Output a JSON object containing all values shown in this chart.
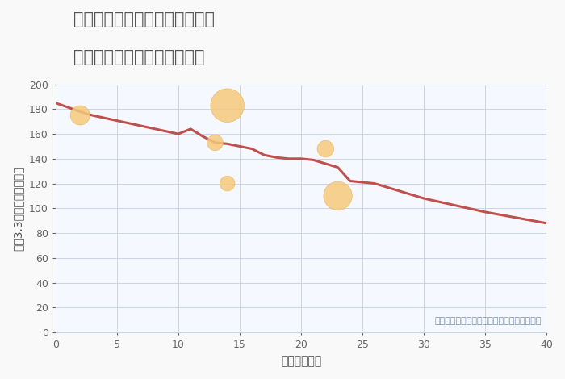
{
  "title_line1": "愛知県名古屋市中村区若宮町の",
  "title_line2": "築年数別中古マンション価格",
  "xlabel": "築年数（年）",
  "ylabel": "坪（3.3㎡）単価（万円）",
  "annotation": "円の大きさは、取引のあった物件面積を示す",
  "xlim": [
    0,
    40
  ],
  "ylim": [
    0,
    200
  ],
  "xticks": [
    0,
    5,
    10,
    15,
    20,
    25,
    30,
    35,
    40
  ],
  "yticks": [
    0,
    20,
    40,
    60,
    80,
    100,
    120,
    140,
    160,
    180,
    200
  ],
  "line_x": [
    0,
    2,
    3,
    10,
    11,
    12,
    13,
    14,
    15,
    16,
    17,
    18,
    19,
    20,
    21,
    22,
    23,
    24,
    25,
    26,
    30,
    35,
    40
  ],
  "line_y": [
    185,
    178,
    175,
    160,
    164,
    158,
    153,
    152,
    150,
    148,
    143,
    141,
    140,
    140,
    139,
    136,
    133,
    122,
    121,
    120,
    108,
    97,
    88
  ],
  "line_color": "#c0504d",
  "line_width": 2.2,
  "scatter_x": [
    2,
    13,
    14,
    14,
    22,
    23
  ],
  "scatter_y": [
    175,
    153,
    183,
    120,
    148,
    110
  ],
  "scatter_sizes": [
    300,
    200,
    900,
    180,
    220,
    650
  ],
  "scatter_color": "#f5c97a",
  "scatter_edge_color": "#e8b85c",
  "scatter_alpha": 0.85,
  "bg_color": "#f9f9f9",
  "plot_bg_color": "#f5f8ff",
  "grid_color": "#c8d8e8",
  "title_color": "#555555",
  "annotation_color": "#7a90a8",
  "title_fontsize": 15,
  "label_fontsize": 10,
  "tick_fontsize": 9,
  "annotation_fontsize": 8
}
